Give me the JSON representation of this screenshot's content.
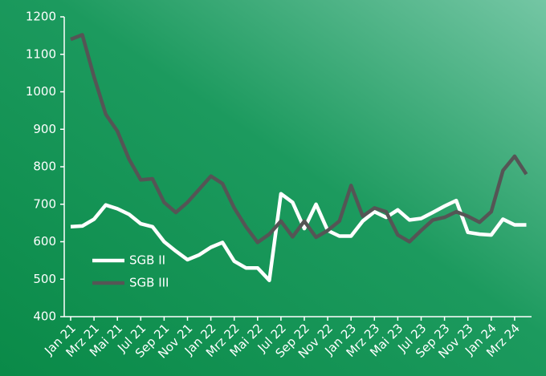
{
  "chart_data": {
    "type": "line",
    "categories": [
      "Jan 21",
      null,
      "Mrz 21",
      null,
      "Mai 21",
      null,
      "Jul 21",
      null,
      "Sep 21",
      null,
      "Nov 21",
      null,
      "Jan 22",
      null,
      "Mrz 22",
      null,
      "Mai 22",
      null,
      "Jul 22",
      null,
      "Sep 22",
      null,
      "Nov 22",
      null,
      "Jan 23",
      null,
      "Mrz 23",
      null,
      "Mai 23",
      null,
      "Jul 23",
      null,
      "Sep 23",
      null,
      "Nov 23",
      null,
      "Jan 24",
      null,
      "Mrz 24",
      null
    ],
    "series": [
      {
        "name": "SGB II",
        "color": "#ffffff",
        "values": [
          640,
          642,
          660,
          698,
          688,
          673,
          648,
          640,
          600,
          575,
          552,
          565,
          585,
          598,
          548,
          530,
          530,
          497,
          728,
          705,
          635,
          700,
          630,
          615,
          615,
          655,
          680,
          665,
          685,
          658,
          662,
          678,
          695,
          710,
          625,
          620,
          618,
          660,
          645,
          645
        ]
      },
      {
        "name": "SGB III",
        "color": "#555555",
        "values": [
          1140,
          1152,
          1040,
          940,
          895,
          820,
          765,
          768,
          705,
          678,
          705,
          740,
          775,
          755,
          690,
          640,
          598,
          620,
          655,
          613,
          655,
          612,
          630,
          655,
          750,
          668,
          690,
          680,
          618,
          600,
          630,
          658,
          665,
          680,
          668,
          652,
          680,
          790,
          828,
          780
        ]
      }
    ],
    "ylim": [
      400,
      1200
    ],
    "yticks": [
      400,
      500,
      600,
      700,
      800,
      900,
      1000,
      1100,
      1200
    ],
    "legend": "lower-left"
  }
}
